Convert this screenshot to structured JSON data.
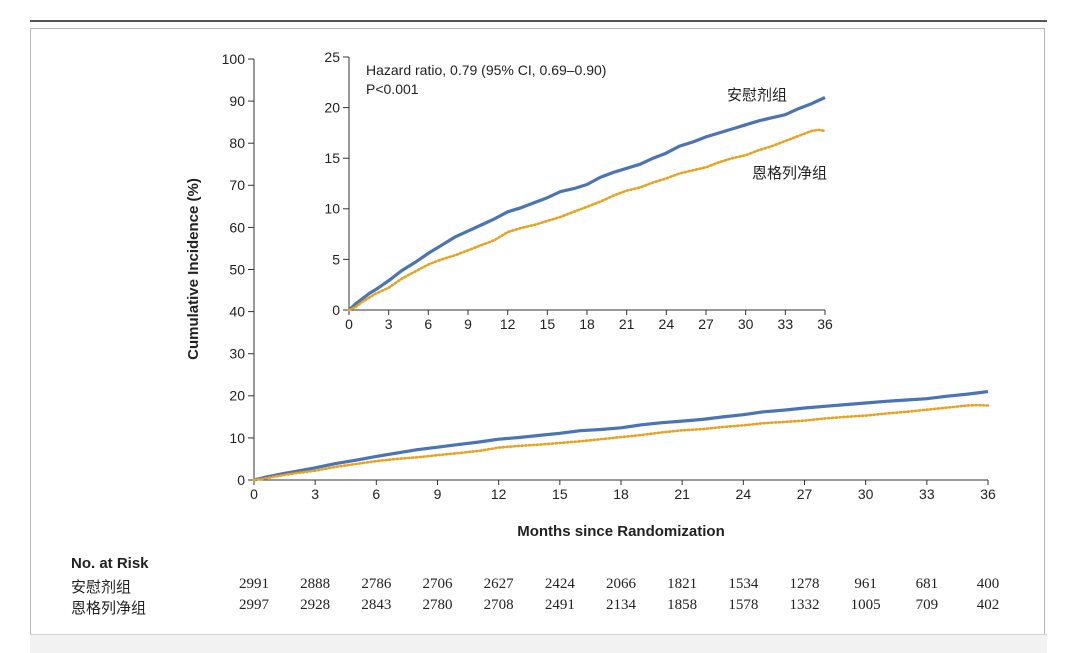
{
  "chart_data": [
    {
      "type": "line",
      "role": "main",
      "xlabel": "Months since Randomization",
      "ylabel": "Cumulative Incidence (%)",
      "xlim": [
        0,
        36
      ],
      "ylim": [
        0,
        100
      ],
      "xticks": [
        "0",
        "3",
        "6",
        "9",
        "12",
        "15",
        "18",
        "21",
        "24",
        "27",
        "30",
        "33",
        "36"
      ],
      "yticks": [
        "0",
        "10",
        "20",
        "30",
        "40",
        "50",
        "60",
        "70",
        "80",
        "90",
        "100"
      ],
      "series": [
        {
          "name": "安慰剂组",
          "color": "#4a74b4",
          "style": "solid",
          "x": [
            0,
            0.5,
            1,
            1.5,
            2,
            3,
            4,
            5,
            6,
            7,
            8,
            9,
            10,
            11,
            12,
            13,
            14,
            15,
            16,
            17,
            18,
            19,
            20,
            21,
            22,
            23,
            24,
            25,
            26,
            27,
            28,
            29,
            30,
            31,
            32,
            33,
            34,
            35,
            35.5,
            36
          ],
          "y": [
            0,
            0.6,
            1.1,
            1.6,
            2.0,
            2.9,
            3.9,
            4.7,
            5.6,
            6.4,
            7.2,
            7.8,
            8.4,
            9.0,
            9.7,
            10.1,
            10.6,
            11.1,
            11.7,
            12.0,
            12.4,
            13.1,
            13.6,
            14.0,
            14.4,
            15.0,
            15.5,
            16.2,
            16.6,
            17.1,
            17.5,
            17.9,
            18.3,
            18.7,
            19.0,
            19.3,
            19.9,
            20.4,
            20.7,
            21.0
          ]
        },
        {
          "name": "恩格列净组",
          "color": "#e8a21d",
          "style": "dotted",
          "x": [
            0,
            0.5,
            1,
            1.5,
            2,
            3,
            4,
            5,
            6,
            7,
            8,
            9,
            10,
            11,
            12,
            13,
            14,
            15,
            16,
            17,
            18,
            19,
            20,
            21,
            22,
            23,
            24,
            25,
            26,
            27,
            28,
            29,
            30,
            31,
            32,
            33,
            34,
            35,
            35.5,
            36
          ],
          "y": [
            0,
            0.3,
            0.8,
            1.2,
            1.6,
            2.2,
            3.1,
            3.8,
            4.5,
            5.0,
            5.4,
            5.9,
            6.4,
            6.9,
            7.7,
            8.1,
            8.4,
            8.8,
            9.2,
            9.7,
            10.2,
            10.7,
            11.3,
            11.8,
            12.1,
            12.6,
            13.0,
            13.5,
            13.8,
            14.1,
            14.6,
            15.0,
            15.3,
            15.8,
            16.2,
            16.7,
            17.2,
            17.7,
            17.8,
            17.7
          ]
        }
      ]
    },
    {
      "type": "line",
      "role": "inset",
      "annotation_line1": "Hazard ratio, 0.79 (95% CI, 0.69–0.90)",
      "annotation_line2": "P<0.001",
      "xlim": [
        0,
        36
      ],
      "ylim": [
        0,
        25
      ],
      "xticks": [
        "0",
        "3",
        "6",
        "9",
        "12",
        "15",
        "18",
        "21",
        "24",
        "27",
        "30",
        "33",
        "36"
      ],
      "yticks": [
        "0",
        "5",
        "10",
        "15",
        "20",
        "25"
      ],
      "series_labels": [
        "安慰剂组",
        "恩格列净组"
      ]
    }
  ],
  "risk_table": {
    "title": "No. at Risk",
    "rows": [
      {
        "label": "安慰剂组",
        "values": [
          "2991",
          "2888",
          "2786",
          "2706",
          "2627",
          "2424",
          "2066",
          "1821",
          "1534",
          "1278",
          "961",
          "681",
          "400"
        ]
      },
      {
        "label": "恩格列净组",
        "values": [
          "2997",
          "2928",
          "2843",
          "2780",
          "2708",
          "2491",
          "2134",
          "1858",
          "1578",
          "1332",
          "1005",
          "709",
          "402"
        ]
      }
    ]
  }
}
